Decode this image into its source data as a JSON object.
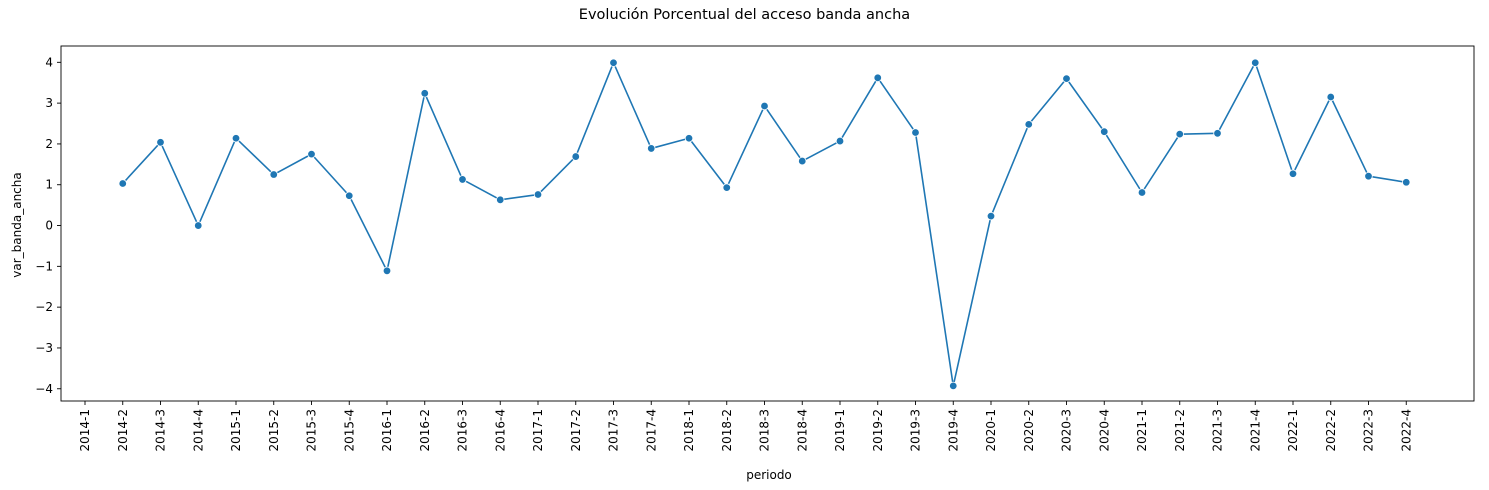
{
  "chart_data": {
    "type": "line",
    "title": "Evolución Porcentual del acceso banda ancha",
    "xlabel": "periodo",
    "ylabel": "var_banda_ancha",
    "ylim": [
      -4.3,
      4.4
    ],
    "yticks": [
      4,
      3,
      2,
      1,
      0,
      -1,
      -2,
      -3,
      -4
    ],
    "ytick_labels": [
      "4",
      "3",
      "2",
      "1",
      "0",
      "−1",
      "−2",
      "−3",
      "−4"
    ],
    "categories": [
      "2014-1",
      "2014-2",
      "2014-3",
      "2014-4",
      "2015-1",
      "2015-2",
      "2015-3",
      "2015-4",
      "2016-1",
      "2016-2",
      "2016-3",
      "2016-4",
      "2017-1",
      "2017-2",
      "2017-3",
      "2017-4",
      "2018-1",
      "2018-2",
      "2018-3",
      "2018-4",
      "2019-1",
      "2019-2",
      "2019-3",
      "2019-4",
      "2020-1",
      "2020-2",
      "2020-3",
      "2020-4",
      "2021-1",
      "2021-2",
      "2021-3",
      "2021-4",
      "2022-1",
      "2022-2",
      "2022-3",
      "2022-4"
    ],
    "series": [
      {
        "color": "#1f77b4",
        "marker": "circle",
        "values": [
          null,
          1.03,
          2.04,
          0.0,
          2.14,
          1.25,
          1.75,
          0.73,
          -1.11,
          3.24,
          1.13,
          0.63,
          0.76,
          1.69,
          3.99,
          1.89,
          2.14,
          0.93,
          2.93,
          1.58,
          2.07,
          3.62,
          2.28,
          -3.93,
          0.23,
          2.48,
          3.6,
          2.3,
          0.81,
          2.24,
          2.26,
          3.99,
          1.27,
          3.15,
          1.21,
          1.06
        ]
      }
    ],
    "grid": false,
    "legend": "none"
  }
}
